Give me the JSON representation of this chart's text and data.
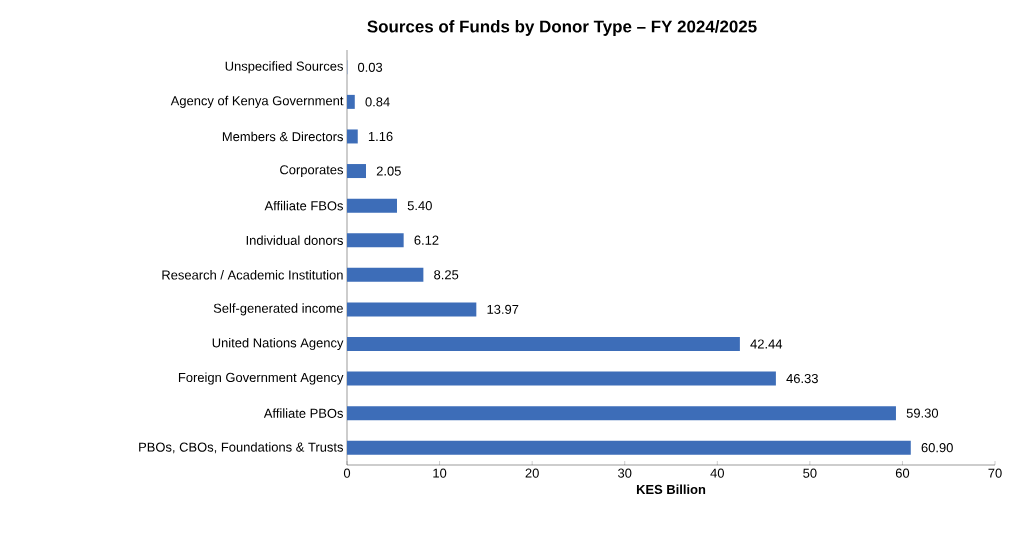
{
  "chart_data": {
    "type": "bar",
    "orientation": "horizontal",
    "title": "Sources of Funds by Donor Type – FY 2024/2025",
    "xlabel": "KES Billion",
    "categories": [
      "Unspecified Sources",
      "Agency of Kenya Government",
      "Members & Directors",
      "Corporates",
      "Affiliate FBOs",
      "Individual donors",
      "Research / Academic Institution",
      "Self-generated income",
      "United Nations Agency",
      "Foreign Government Agency",
      "Affiliate PBOs",
      "PBOs, CBOs, Foundations & Trusts"
    ],
    "values": [
      0.03,
      0.84,
      1.16,
      2.05,
      5.4,
      6.12,
      8.25,
      13.97,
      42.44,
      46.33,
      59.3,
      60.9
    ],
    "value_labels": [
      "0.03",
      "0.84",
      "1.16",
      "2.05",
      "5.40",
      "6.12",
      "8.25",
      "13.97",
      "42.44",
      "46.33",
      "59.30",
      "60.90"
    ],
    "color": "#3d6db8",
    "xlim": [
      0,
      70
    ],
    "xticks": [
      0,
      10,
      20,
      30,
      40,
      50,
      60,
      70
    ],
    "grid": false
  }
}
